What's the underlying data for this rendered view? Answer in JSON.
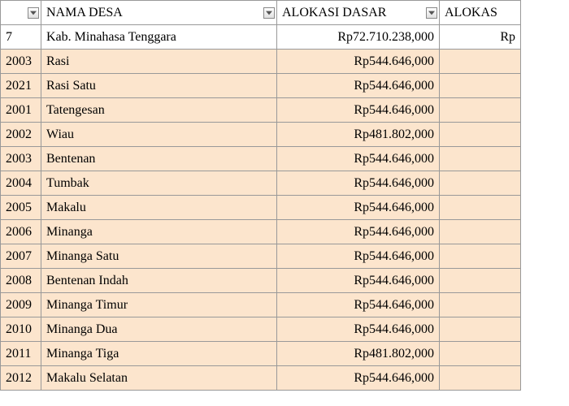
{
  "headers": {
    "code": "",
    "name": "NAMA DESA",
    "alokasi_dasar": "ALOKASI DASAR",
    "alokasi2": "ALOKAS"
  },
  "summary_row": {
    "code": "7",
    "name": "Kab. Minahasa Tenggara",
    "alokasi_dasar": "Rp72.710.238,000",
    "alokasi2": "Rp"
  },
  "rows": [
    {
      "code": "2003",
      "name": "Rasi",
      "alokasi_dasar": "Rp544.646,000"
    },
    {
      "code": "2021",
      "name": "Rasi Satu",
      "alokasi_dasar": "Rp544.646,000"
    },
    {
      "code": "2001",
      "name": "Tatengesan",
      "alokasi_dasar": "Rp544.646,000"
    },
    {
      "code": "2002",
      "name": "Wiau",
      "alokasi_dasar": "Rp481.802,000"
    },
    {
      "code": "2003",
      "name": "Bentenan",
      "alokasi_dasar": "Rp544.646,000"
    },
    {
      "code": "2004",
      "name": "Tumbak",
      "alokasi_dasar": "Rp544.646,000"
    },
    {
      "code": "2005",
      "name": "Makalu",
      "alokasi_dasar": "Rp544.646,000"
    },
    {
      "code": "2006",
      "name": "Minanga",
      "alokasi_dasar": "Rp544.646,000"
    },
    {
      "code": "2007",
      "name": "Minanga Satu",
      "alokasi_dasar": "Rp544.646,000"
    },
    {
      "code": "2008",
      "name": "Bentenan Indah",
      "alokasi_dasar": "Rp544.646,000"
    },
    {
      "code": "2009",
      "name": "Minanga Timur",
      "alokasi_dasar": "Rp544.646,000"
    },
    {
      "code": "2010",
      "name": "Minanga Dua",
      "alokasi_dasar": "Rp544.646,000"
    },
    {
      "code": "2011",
      "name": "Minanga Tiga",
      "alokasi_dasar": "Rp481.802,000"
    },
    {
      "code": "2012",
      "name": "Makalu Selatan",
      "alokasi_dasar": "Rp544.646,000"
    }
  ],
  "colors": {
    "band": "#fce5cd",
    "border": "#999999",
    "bg": "#ffffff"
  }
}
